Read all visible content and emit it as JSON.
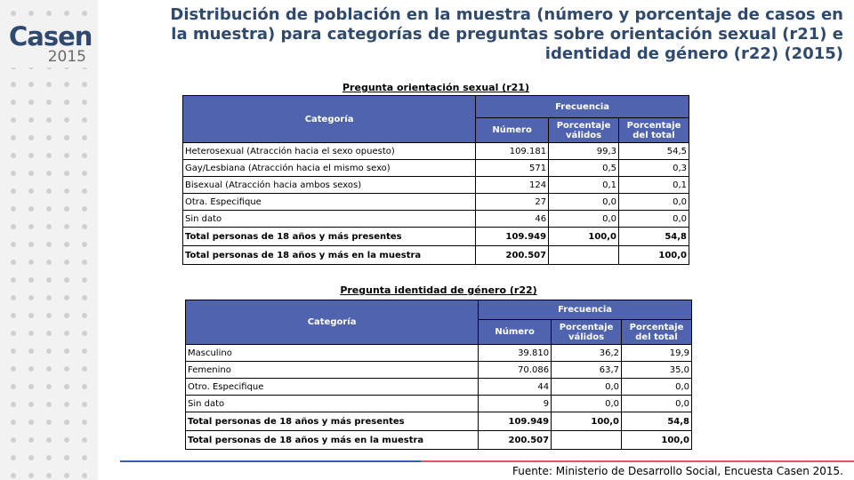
{
  "logo": {
    "word": "Casen",
    "year": "2015"
  },
  "title": "Distribución de población en la muestra (número y porcentaje de casos en la muestra) para categorías de preguntas sobre orientación sexual (r21) e identidad de género (r22) (2015)",
  "tables": [
    {
      "caption": "Pregunta orientación sexual (r21)",
      "header": {
        "categoria": "Categoría",
        "frecuencia": "Frecuencia",
        "numero": "Número",
        "pct_validos": "Porcentaje válidos",
        "pct_total": "Porcentaje del total"
      },
      "rows": [
        {
          "cat": "Heterosexual (Atracción hacia el sexo opuesto)",
          "n": "109.181",
          "pv": "99,3",
          "pt": "54,5"
        },
        {
          "cat": "Gay/Lesbiana (Atracción hacia el mismo sexo)",
          "n": "571",
          "pv": "0,5",
          "pt": "0,3"
        },
        {
          "cat": "Bisexual (Atracción hacia ambos sexos)",
          "n": "124",
          "pv": "0,1",
          "pt": "0,1"
        },
        {
          "cat": "Otra. Especifique",
          "n": "27",
          "pv": "0,0",
          "pt": "0,0"
        },
        {
          "cat": "Sin dato",
          "n": "46",
          "pv": "0,0",
          "pt": "0,0"
        },
        {
          "cat": "Total personas de 18 años y más presentes",
          "n": "109.949",
          "pv": "100,0",
          "pt": "54,8"
        },
        {
          "cat": "Total personas de 18 años y más en la muestra",
          "n": "200.507",
          "pv": "",
          "pt": "100,0"
        }
      ]
    },
    {
      "caption": "Pregunta identidad de género (r22)",
      "header": {
        "categoria": "Categoría",
        "frecuencia": "Frecuencia",
        "numero": "Número",
        "pct_validos": "Porcentaje válidos",
        "pct_total": "Porcentaje del total"
      },
      "rows": [
        {
          "cat": "Masculino",
          "n": "39.810",
          "pv": "36,2",
          "pt": "19,9"
        },
        {
          "cat": "Femenino",
          "n": "70.086",
          "pv": "63,7",
          "pt": "35,0"
        },
        {
          "cat": "Otro. Especifique",
          "n": "44",
          "pv": "0,0",
          "pt": "0,0"
        },
        {
          "cat": "Sin dato",
          "n": "9",
          "pv": "0,0",
          "pt": "0,0"
        },
        {
          "cat": "Total personas de 18 años y más presentes",
          "n": "109.949",
          "pv": "100,0",
          "pt": "54,8"
        },
        {
          "cat": "Total personas de 18 años y más en la muestra",
          "n": "200.507",
          "pv": "",
          "pt": "100,0"
        }
      ]
    }
  ],
  "source": "Fuente: Ministerio de Desarrollo Social, Encuesta Casen 2015.",
  "colors": {
    "title": "#2f4a6e",
    "header_fill": "#4f63ae",
    "rule_blue": "#2a64b0",
    "rule_red": "#d85a5a",
    "sidebar": "#f2f2f2"
  }
}
